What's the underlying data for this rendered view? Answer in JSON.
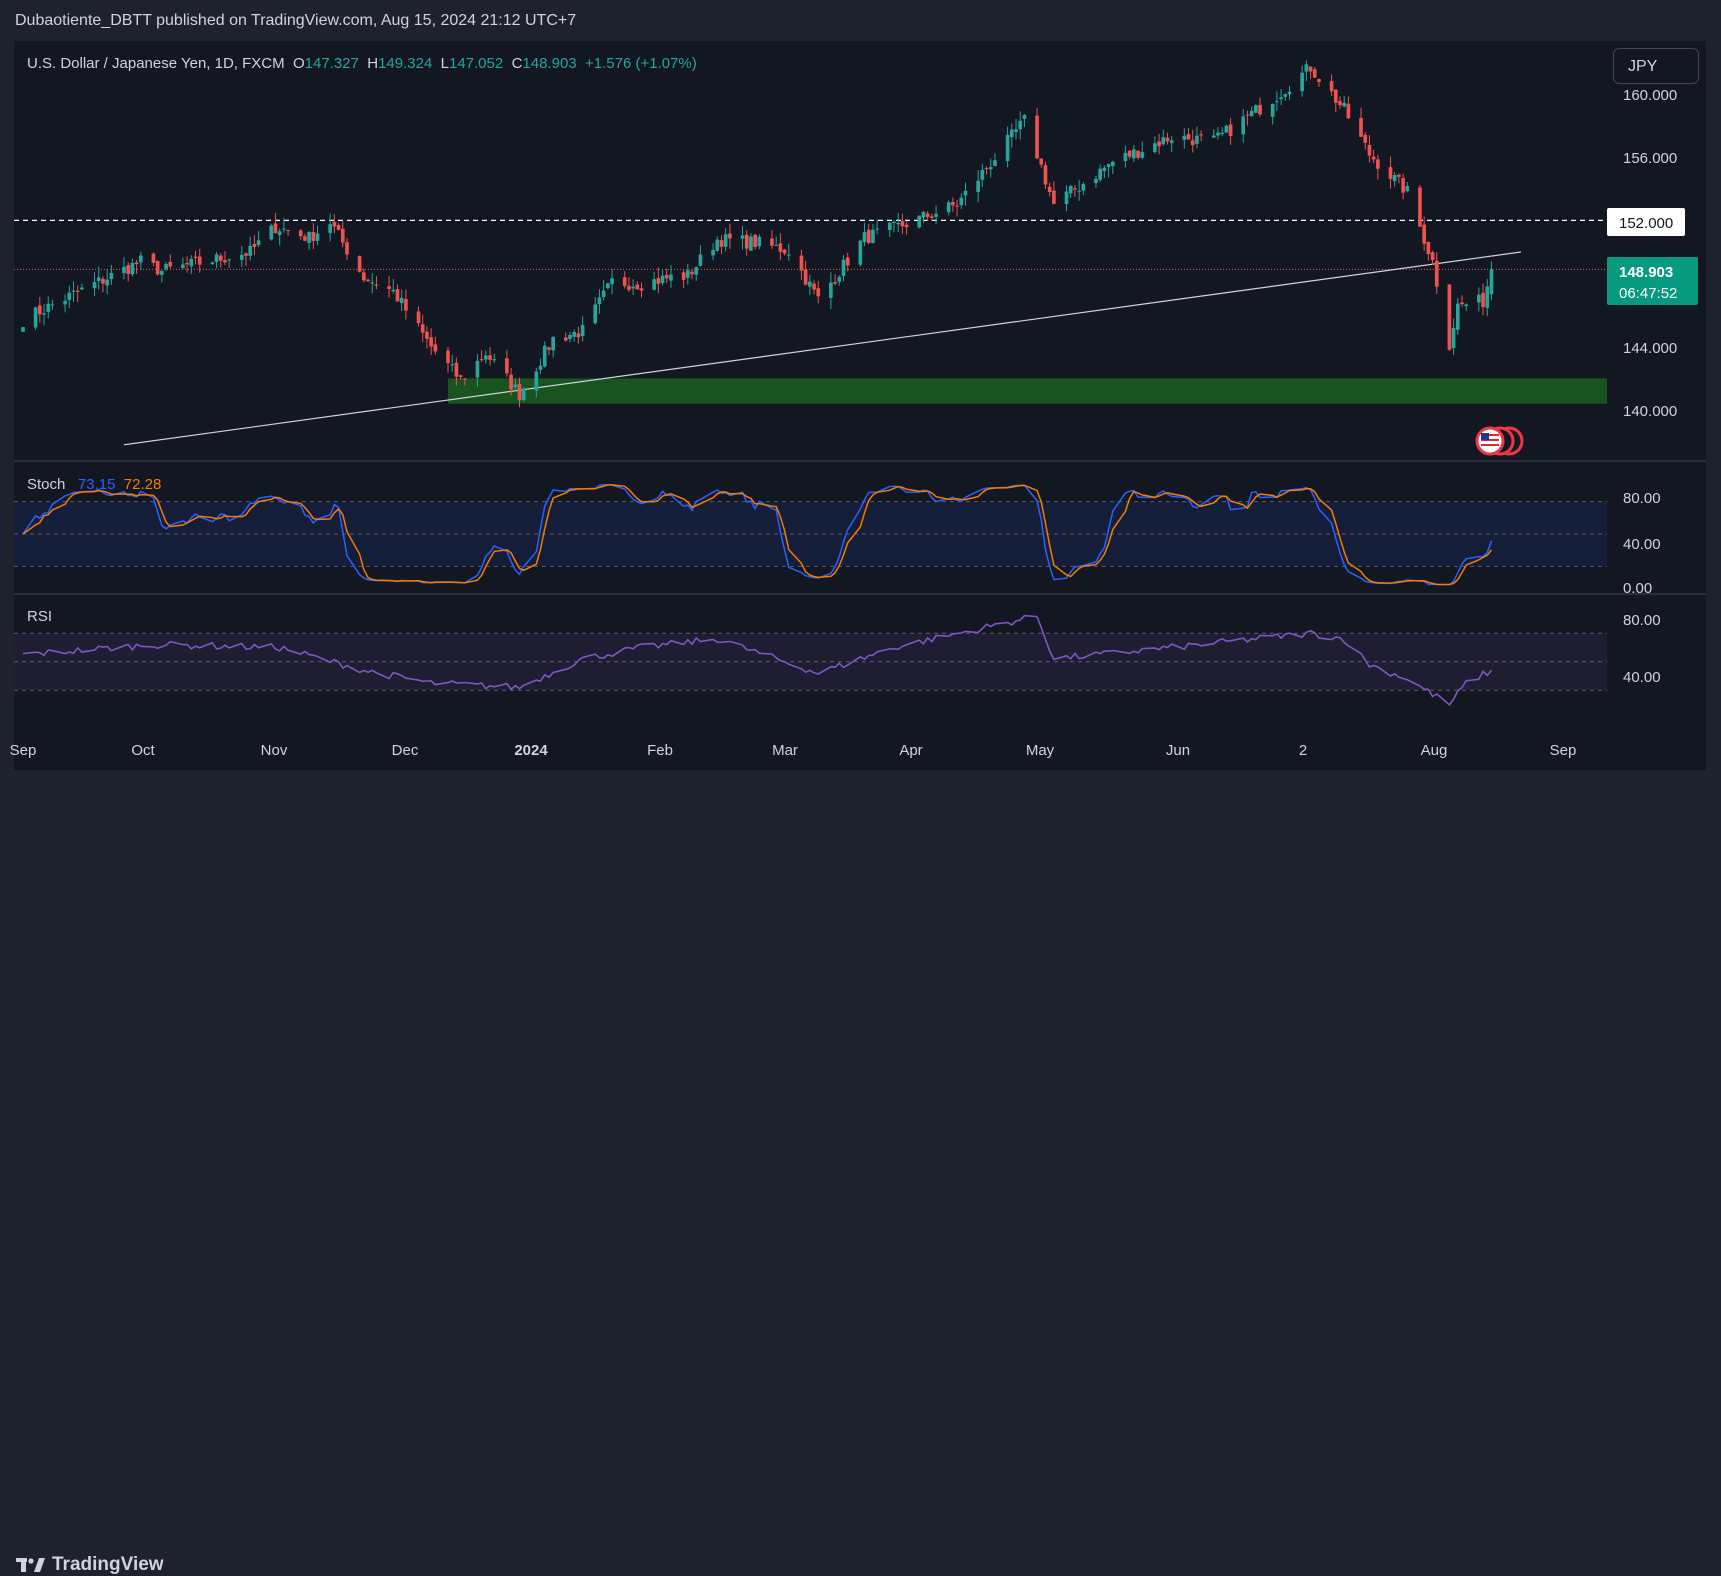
{
  "publisher": "Dubaotiente_DBTT published on TradingView.com, Aug 15, 2024 21:12 UTC+7",
  "symbol": {
    "name": "U.S. Dollar / Japanese Yen, 1D, FXCM",
    "open_label": "O",
    "open": "147.327",
    "high_label": "H",
    "high": "149.324",
    "low_label": "L",
    "low": "147.052",
    "close_label": "C",
    "close": "148.903",
    "change": "+1.576 (+1.07%)"
  },
  "currency_button": "JPY",
  "price_axis": [
    "160.000",
    "156.000",
    "144.000",
    "140.000"
  ],
  "price_level_label": "152.000",
  "last_price": {
    "price": "148.903",
    "countdown": "06:47:52"
  },
  "stoch": {
    "title": "Stoch",
    "k": "73.15",
    "d": "72.28",
    "axis": [
      "80.00",
      "40.00",
      "0.00"
    ]
  },
  "rsi": {
    "title": "RSI",
    "axis": [
      "80.00",
      "40.00"
    ]
  },
  "time_axis": [
    "Sep",
    "Oct",
    "Nov",
    "Dec",
    "2024",
    "Feb",
    "Mar",
    "Apr",
    "May",
    "Jun",
    "2",
    "Aug",
    "Sep"
  ],
  "brand": "TradingView",
  "colors": {
    "up": "#26a69a",
    "down": "#ef5350",
    "background": "#131722",
    "stoch_k": "#2962ff",
    "stoch_d": "#f57c00",
    "rsi": "#7e57c2",
    "support_zone": "#1b5e20"
  },
  "chart_data": {
    "type": "candlestick",
    "symbol": "USD/JPY",
    "interval": "1D",
    "price_range": [
      137.5,
      163
    ],
    "horizontal_level": 152.0,
    "support_zone": [
      140.4,
      142.0
    ],
    "trendline": [
      {
        "date": "2023-09-25",
        "price": 137.8
      },
      {
        "date": "2024-08-22",
        "price": 150.0
      }
    ],
    "price_anchors": [
      [
        "2023-09-01",
        145.7
      ],
      [
        "2023-09-12",
        147.2
      ],
      [
        "2023-09-29",
        149.4
      ],
      [
        "2023-10-04",
        148.8
      ],
      [
        "2023-10-25",
        150.0
      ],
      [
        "2023-10-31",
        151.6
      ],
      [
        "2023-11-08",
        150.9
      ],
      [
        "2023-11-13",
        151.9
      ],
      [
        "2023-11-21",
        148.4
      ],
      [
        "2023-11-28",
        147.5
      ],
      [
        "2023-12-07",
        144.0
      ],
      [
        "2023-12-14",
        141.9
      ],
      [
        "2023-12-20",
        143.6
      ],
      [
        "2023-12-28",
        141.0
      ],
      [
        "2024-01-05",
        144.5
      ],
      [
        "2024-01-12",
        145.0
      ],
      [
        "2024-01-19",
        148.1
      ],
      [
        "2024-01-26",
        148.0
      ],
      [
        "2024-02-02",
        148.4
      ],
      [
        "2024-02-06",
        148.5
      ],
      [
        "2024-02-13",
        150.8
      ],
      [
        "2024-02-22",
        150.6
      ],
      [
        "2024-03-01",
        150.1
      ],
      [
        "2024-03-08",
        147.0
      ],
      [
        "2024-03-19",
        150.9
      ],
      [
        "2024-03-26",
        151.5
      ],
      [
        "2024-04-10",
        153.0
      ],
      [
        "2024-04-26",
        158.3
      ],
      [
        "2024-04-29",
        156.2
      ],
      [
        "2024-05-03",
        153.0
      ],
      [
        "2024-05-17",
        155.7
      ],
      [
        "2024-05-31",
        157.3
      ],
      [
        "2024-06-10",
        157.0
      ],
      [
        "2024-06-24",
        159.7
      ],
      [
        "2024-07-03",
        161.7
      ],
      [
        "2024-07-11",
        159.0
      ],
      [
        "2024-07-17",
        156.2
      ],
      [
        "2024-07-26",
        153.8
      ],
      [
        "2024-08-01",
        149.4
      ],
      [
        "2024-08-05",
        144.2
      ],
      [
        "2024-08-07",
        146.6
      ],
      [
        "2024-08-13",
        146.9
      ],
      [
        "2024-08-15",
        148.9
      ]
    ],
    "stoch_range": [
      0,
      100
    ],
    "stoch_levels": [
      80,
      20
    ],
    "rsi_range": [
      0,
      100
    ],
    "rsi_levels": [
      70,
      50,
      30
    ],
    "rsi_anchors": [
      [
        "2023-09-01",
        55
      ],
      [
        "2023-10-02",
        62
      ],
      [
        "2023-11-01",
        60
      ],
      [
        "2023-11-21",
        44
      ],
      [
        "2023-12-07",
        35
      ],
      [
        "2023-12-28",
        32
      ],
      [
        "2024-01-12",
        52
      ],
      [
        "2024-01-26",
        60
      ],
      [
        "2024-02-13",
        66
      ],
      [
        "2024-03-08",
        42
      ],
      [
        "2024-03-26",
        60
      ],
      [
        "2024-04-29",
        82
      ],
      [
        "2024-05-03",
        52
      ],
      [
        "2024-05-31",
        60
      ],
      [
        "2024-07-03",
        70
      ],
      [
        "2024-07-11",
        66
      ],
      [
        "2024-07-17",
        48
      ],
      [
        "2024-07-26",
        38
      ],
      [
        "2024-08-05",
        20
      ],
      [
        "2024-08-09",
        35
      ],
      [
        "2024-08-15",
        44
      ]
    ]
  }
}
